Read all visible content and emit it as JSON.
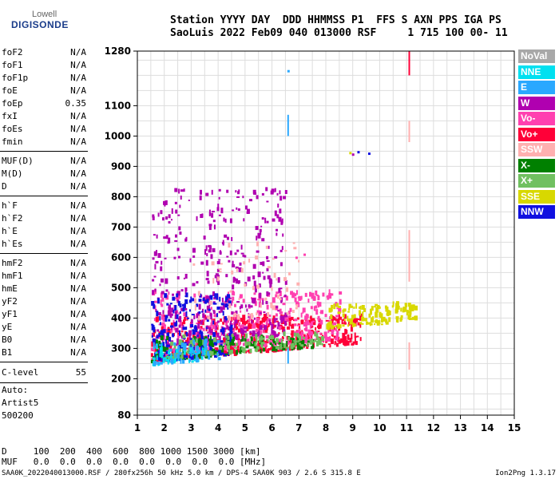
{
  "logo": {
    "line1": "Lowell",
    "line2": "DIGISONDE"
  },
  "header": {
    "line1": "Station YYYY DAY  DDD HHMMSS P1  FFS S AXN PPS IGA PS",
    "line2": "SaoLuis 2022 Feb09 040 013000 RSF     1 715 100 00- 11"
  },
  "params": {
    "group1": [
      {
        "name": "foF2",
        "value": "N/A"
      },
      {
        "name": "foF1",
        "value": "N/A"
      },
      {
        "name": "foF1p",
        "value": "N/A"
      },
      {
        "name": "foE",
        "value": "N/A"
      },
      {
        "name": "foEp",
        "value": "0.35"
      },
      {
        "name": "fxI",
        "value": "N/A"
      },
      {
        "name": "foEs",
        "value": "N/A"
      },
      {
        "name": "fmin",
        "value": "N/A"
      }
    ],
    "group2": [
      {
        "name": "MUF(D)",
        "value": "N/A"
      },
      {
        "name": "M(D)",
        "value": "N/A"
      },
      {
        "name": "D",
        "value": "N/A"
      }
    ],
    "group3": [
      {
        "name": "h`F",
        "value": "N/A"
      },
      {
        "name": "h`F2",
        "value": "N/A"
      },
      {
        "name": "h`E",
        "value": "N/A"
      },
      {
        "name": "h`Es",
        "value": "N/A"
      }
    ],
    "group4": [
      {
        "name": "hmF2",
        "value": "N/A"
      },
      {
        "name": "hmF1",
        "value": "N/A"
      },
      {
        "name": "hmE",
        "value": "N/A"
      },
      {
        "name": "yF2",
        "value": "N/A"
      },
      {
        "name": "yF1",
        "value": "N/A"
      },
      {
        "name": "yE",
        "value": "N/A"
      },
      {
        "name": "B0",
        "value": "N/A"
      },
      {
        "name": "B1",
        "value": "N/A"
      }
    ],
    "clevel": {
      "name": "C-level",
      "value": "55"
    }
  },
  "auto": {
    "line1": "Auto:",
    "line2": "Artist5",
    "line3": "500200"
  },
  "bottom": {
    "d_line": "D     100  200  400  600  800 1000 1500 3000 [km]",
    "muf_line": "MUF   0.0  0.0  0.0  0.0  0.0  0.0  0.0  0.0 [MHz]"
  },
  "footer": {
    "text": "SAA0K_2022040013000.RSF / 280fx256h 50 kHz 5.0 km / DPS-4 SAA0K 903 / 2.6 S 315.8 E",
    "version": "Ion2Png 1.3.17"
  },
  "legend": [
    {
      "label": "NoVal",
      "color": "#a8a8a8"
    },
    {
      "label": "NNE",
      "color": "#00e0f0"
    },
    {
      "label": "E",
      "color": "#2aa8ff"
    },
    {
      "label": "W",
      "color": "#b000b0"
    },
    {
      "label": "Vo-",
      "color": "#ff40b0"
    },
    {
      "label": "Vo+",
      "color": "#ff0038"
    },
    {
      "label": "SSW",
      "color": "#ffb0b0"
    },
    {
      "label": "X-",
      "color": "#008000"
    },
    {
      "label": "X+",
      "color": "#70c060"
    },
    {
      "label": "SSE",
      "color": "#d8d800"
    },
    {
      "label": "NNW",
      "color": "#1010e0"
    }
  ],
  "chart_data": {
    "type": "scatter",
    "xlim": [
      1,
      15
    ],
    "ylim": [
      80,
      1280
    ],
    "x_ticks": [
      "1",
      "2",
      "3",
      "4",
      "5",
      "6",
      "7",
      "8",
      "9",
      "10",
      "11",
      "12",
      "13",
      "14",
      "15"
    ],
    "y_ticks": [
      {
        "v": 80,
        "label": "80"
      },
      {
        "v": 200,
        "label": "200"
      },
      {
        "v": 300,
        "label": "300"
      },
      {
        "v": 400,
        "label": "400"
      },
      {
        "v": 500,
        "label": "500"
      },
      {
        "v": 600,
        "label": "600"
      },
      {
        "v": 700,
        "label": "700"
      },
      {
        "v": 800,
        "label": "800"
      },
      {
        "v": 900,
        "label": "900"
      },
      {
        "v": 1000,
        "label": "1000"
      },
      {
        "v": 1100,
        "label": "1100"
      },
      {
        "v": 1280,
        "label": "1280"
      }
    ],
    "grid": true,
    "clusters": [
      {
        "color": "#ff0038",
        "x": [
          1.5,
          9.3
        ],
        "y": [
          250,
          400
        ],
        "n": 520
      },
      {
        "color": "#ff40b0",
        "x": [
          1.5,
          8.5
        ],
        "y": [
          270,
          480
        ],
        "n": 380
      },
      {
        "color": "#b000b0",
        "x": [
          1.5,
          6.5
        ],
        "y": [
          300,
          820
        ],
        "n": 420
      },
      {
        "color": "#1010e0",
        "x": [
          1.5,
          4.5
        ],
        "y": [
          250,
          470
        ],
        "n": 240
      },
      {
        "color": "#008000",
        "x": [
          1.5,
          7.5
        ],
        "y": [
          250,
          330
        ],
        "n": 160
      },
      {
        "color": "#70c060",
        "x": [
          2,
          8
        ],
        "y": [
          260,
          340
        ],
        "n": 120
      },
      {
        "color": "#d8d800",
        "x": [
          8,
          11.3
        ],
        "y": [
          360,
          440
        ],
        "n": 150
      },
      {
        "color": "#00e0f0",
        "x": [
          1.5,
          3.5
        ],
        "y": [
          240,
          300
        ],
        "n": 60
      },
      {
        "color": "#2aa8ff",
        "x": [
          1.5,
          4
        ],
        "y": [
          240,
          320
        ],
        "n": 50
      },
      {
        "color": "#ffb0b0",
        "x": [
          3,
          7
        ],
        "y": [
          380,
          650
        ],
        "n": 60
      }
    ],
    "features": [
      {
        "color": "#2aa8ff",
        "x": 6.6,
        "y": [
          1000,
          1070
        ]
      },
      {
        "color": "#2aa8ff",
        "x": 6.6,
        "y": [
          250,
          300
        ]
      },
      {
        "color": "#ffb0b0",
        "x": 11.1,
        "y": [
          980,
          1050
        ]
      },
      {
        "color": "#ffb0b0",
        "x": 11.1,
        "y": [
          520,
          690
        ]
      },
      {
        "color": "#ffb0b0",
        "x": 11.1,
        "y": [
          230,
          320
        ]
      },
      {
        "color": "#ff0038",
        "x": 11.1,
        "y": [
          1200,
          1280
        ]
      }
    ],
    "points": [
      {
        "x": 8.9,
        "y": 945,
        "color": "#d8d800"
      },
      {
        "x": 9.0,
        "y": 940,
        "color": "#b000b0"
      },
      {
        "x": 9.2,
        "y": 948,
        "color": "#1010e0"
      },
      {
        "x": 9.6,
        "y": 943,
        "color": "#1010e0"
      },
      {
        "x": 6.6,
        "y": 1215,
        "color": "#2aa8ff"
      },
      {
        "x": 6.9,
        "y": 600,
        "color": "#ff40b0"
      },
      {
        "x": 7.2,
        "y": 610,
        "color": "#ff40b0"
      }
    ]
  }
}
